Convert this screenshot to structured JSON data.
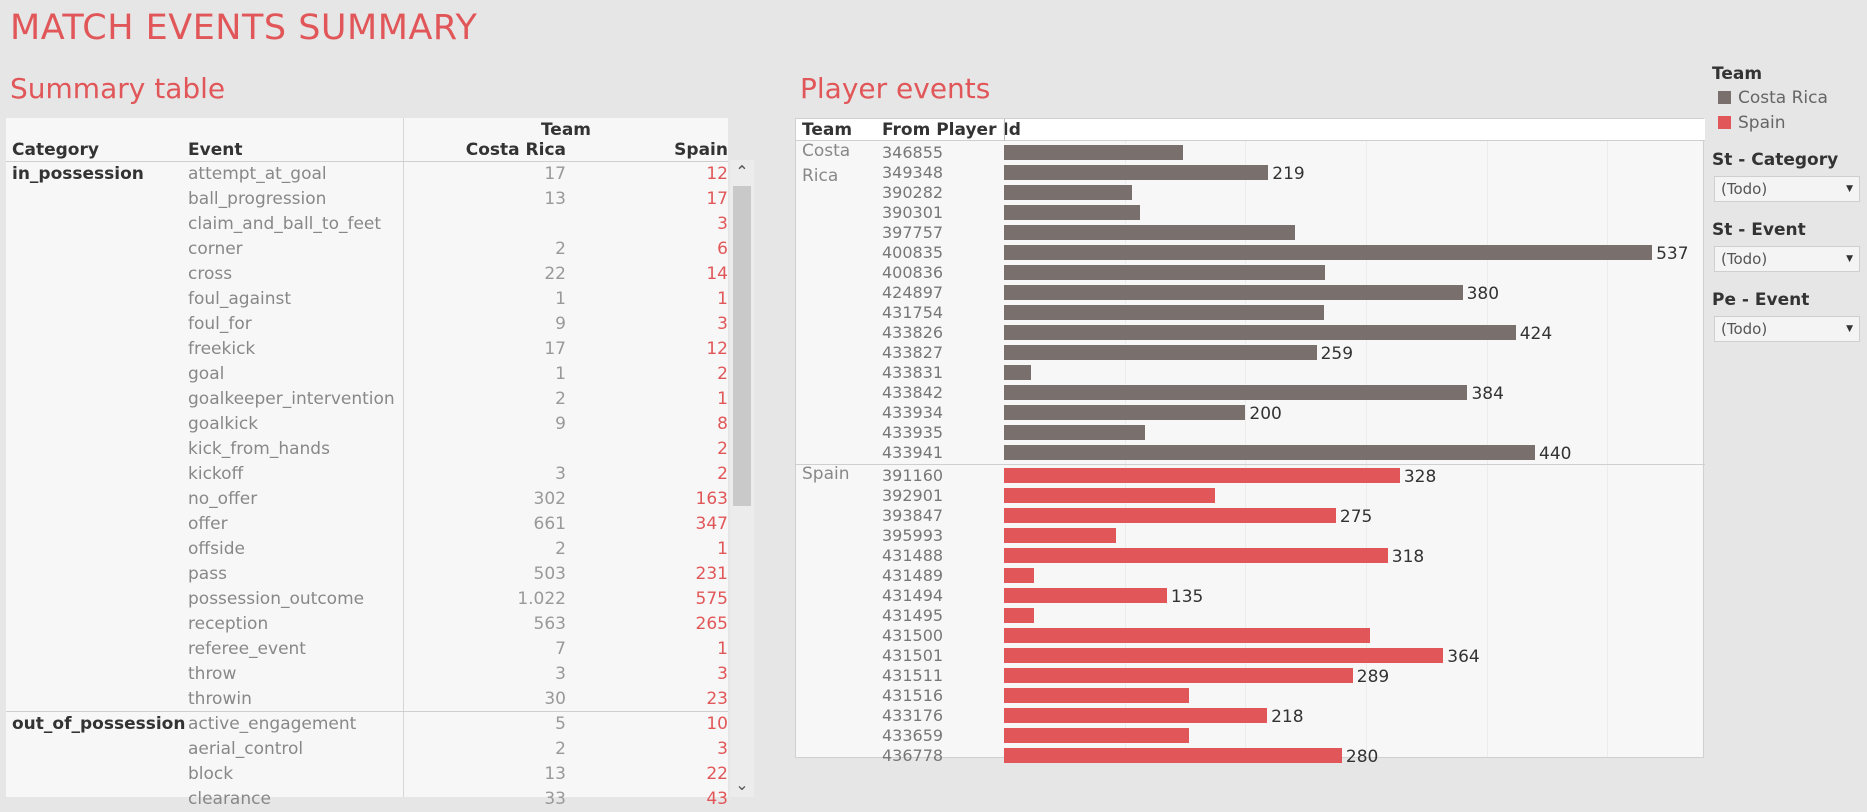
{
  "title": "MATCH EVENTS SUMMARY",
  "summary": {
    "title": "Summary table",
    "headers": {
      "team": "Team",
      "category": "Category",
      "event": "Event",
      "costa_rica": "Costa Rica",
      "spain": "Spain"
    },
    "rows": [
      {
        "category": "in_possession",
        "event": "attempt_at_goal",
        "cr": "17",
        "sp": "12"
      },
      {
        "category": "",
        "event": "ball_progression",
        "cr": "13",
        "sp": "17"
      },
      {
        "category": "",
        "event": "claim_and_ball_to_feet",
        "cr": "",
        "sp": "3"
      },
      {
        "category": "",
        "event": "corner",
        "cr": "2",
        "sp": "6"
      },
      {
        "category": "",
        "event": "cross",
        "cr": "22",
        "sp": "14"
      },
      {
        "category": "",
        "event": "foul_against",
        "cr": "1",
        "sp": "1"
      },
      {
        "category": "",
        "event": "foul_for",
        "cr": "9",
        "sp": "3"
      },
      {
        "category": "",
        "event": "freekick",
        "cr": "17",
        "sp": "12"
      },
      {
        "category": "",
        "event": "goal",
        "cr": "1",
        "sp": "2"
      },
      {
        "category": "",
        "event": "goalkeeper_intervention",
        "cr": "2",
        "sp": "1"
      },
      {
        "category": "",
        "event": "goalkick",
        "cr": "9",
        "sp": "8"
      },
      {
        "category": "",
        "event": "kick_from_hands",
        "cr": "",
        "sp": "2"
      },
      {
        "category": "",
        "event": "kickoff",
        "cr": "3",
        "sp": "2"
      },
      {
        "category": "",
        "event": "no_offer",
        "cr": "302",
        "sp": "163"
      },
      {
        "category": "",
        "event": "offer",
        "cr": "661",
        "sp": "347"
      },
      {
        "category": "",
        "event": "offside",
        "cr": "2",
        "sp": "1"
      },
      {
        "category": "",
        "event": "pass",
        "cr": "503",
        "sp": "231"
      },
      {
        "category": "",
        "event": "possession_outcome",
        "cr": "1.022",
        "sp": "575"
      },
      {
        "category": "",
        "event": "reception",
        "cr": "563",
        "sp": "265"
      },
      {
        "category": "",
        "event": "referee_event",
        "cr": "7",
        "sp": "1"
      },
      {
        "category": "",
        "event": "throw",
        "cr": "3",
        "sp": "3"
      },
      {
        "category": "",
        "event": "throwin",
        "cr": "30",
        "sp": "23"
      },
      {
        "category": "out_of_possession",
        "event": "active_engagement",
        "cr": "5",
        "sp": "10"
      },
      {
        "category": "",
        "event": "aerial_control",
        "cr": "2",
        "sp": "3"
      },
      {
        "category": "",
        "event": "block",
        "cr": "13",
        "sp": "22"
      },
      {
        "category": "",
        "event": "clearance",
        "cr": "33",
        "sp": "43"
      }
    ]
  },
  "scroll": {
    "up_icon": "chevron-up-icon",
    "down_icon": "chevron-down-icon",
    "up_glyph": "⌃",
    "down_glyph": "⌄"
  },
  "player_events": {
    "title": "Player events",
    "headers": {
      "team": "Team",
      "player": "From Player Id"
    }
  },
  "chart_data": {
    "type": "bar",
    "orientation": "horizontal",
    "xlim": [
      0,
      580
    ],
    "grid": true,
    "groups": [
      {
        "team": "Costa Rica",
        "label_lines": [
          "Costa",
          "Rica"
        ],
        "color": "#79706e",
        "players": [
          {
            "id": "346855",
            "value": 148,
            "label": ""
          },
          {
            "id": "349348",
            "value": 219,
            "label": "219"
          },
          {
            "id": "390282",
            "value": 106,
            "label": ""
          },
          {
            "id": "390301",
            "value": 113,
            "label": ""
          },
          {
            "id": "397757",
            "value": 241,
            "label": ""
          },
          {
            "id": "400835",
            "value": 537,
            "label": "537"
          },
          {
            "id": "400836",
            "value": 266,
            "label": ""
          },
          {
            "id": "424897",
            "value": 380,
            "label": "380"
          },
          {
            "id": "431754",
            "value": 265,
            "label": ""
          },
          {
            "id": "433826",
            "value": 424,
            "label": "424"
          },
          {
            "id": "433827",
            "value": 259,
            "label": "259"
          },
          {
            "id": "433831",
            "value": 22,
            "label": ""
          },
          {
            "id": "433842",
            "value": 384,
            "label": "384"
          },
          {
            "id": "433934",
            "value": 200,
            "label": "200"
          },
          {
            "id": "433935",
            "value": 117,
            "label": ""
          },
          {
            "id": "433941",
            "value": 440,
            "label": "440"
          }
        ]
      },
      {
        "team": "Spain",
        "label_lines": [
          "Spain"
        ],
        "color": "#e15759",
        "players": [
          {
            "id": "391160",
            "value": 328,
            "label": "328"
          },
          {
            "id": "392901",
            "value": 175,
            "label": ""
          },
          {
            "id": "393847",
            "value": 275,
            "label": "275"
          },
          {
            "id": "395993",
            "value": 93,
            "label": ""
          },
          {
            "id": "431488",
            "value": 318,
            "label": "318"
          },
          {
            "id": "431489",
            "value": 25,
            "label": ""
          },
          {
            "id": "431494",
            "value": 135,
            "label": "135"
          },
          {
            "id": "431495",
            "value": 25,
            "label": ""
          },
          {
            "id": "431500",
            "value": 303,
            "label": ""
          },
          {
            "id": "431501",
            "value": 364,
            "label": "364"
          },
          {
            "id": "431511",
            "value": 289,
            "label": "289"
          },
          {
            "id": "431516",
            "value": 153,
            "label": ""
          },
          {
            "id": "433176",
            "value": 218,
            "label": "218"
          },
          {
            "id": "433659",
            "value": 153,
            "label": ""
          },
          {
            "id": "436778",
            "value": 280,
            "label": "280"
          }
        ]
      }
    ]
  },
  "legend": {
    "title": "Team",
    "items": [
      {
        "label": "Costa Rica",
        "color": "#79706e"
      },
      {
        "label": "Spain",
        "color": "#e15759"
      }
    ]
  },
  "filters": [
    {
      "title": "St - Category",
      "value": "(Todo)"
    },
    {
      "title": "St - Event",
      "value": "(Todo)"
    },
    {
      "title": "Pe - Event",
      "value": "(Todo)"
    }
  ],
  "dropdown_arrow": "▼"
}
